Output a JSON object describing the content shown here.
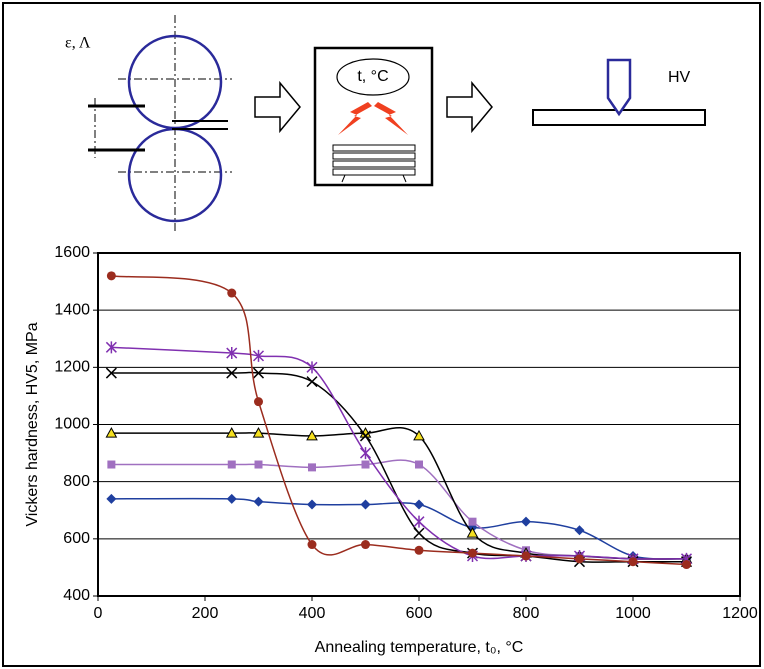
{
  "diagram": {
    "labels": [
      "ε, Λ",
      "t, °C",
      "HV"
    ]
  },
  "chart_data": {
    "type": "line",
    "y_label": "Vickers hardness, HV5, MPa",
    "x_label": "Annealing temperature, t₀, °C",
    "xlim": [
      0,
      1200
    ],
    "xticks": [
      0,
      200,
      400,
      600,
      800,
      1000,
      1200
    ],
    "ylim": [
      400,
      1600
    ],
    "yticks": [
      400,
      600,
      800,
      1000,
      1200,
      1400,
      1600
    ],
    "grid": true,
    "smooth": true,
    "series": [
      {
        "color": "#1f3f9f",
        "marker": "diamond",
        "x": [
          25,
          250,
          300,
          400,
          500,
          600,
          700,
          800,
          900,
          1000,
          1100
        ],
        "values": [
          740,
          740,
          730,
          720,
          720,
          720,
          640,
          660,
          630,
          540,
          530
        ]
      },
      {
        "color": "#a070c0",
        "marker": "square",
        "x": [
          25,
          250,
          300,
          400,
          500,
          600,
          700,
          800,
          900,
          1000,
          1100
        ],
        "values": [
          860,
          860,
          860,
          850,
          860,
          860,
          660,
          560,
          540,
          530,
          530
        ]
      },
      {
        "color": "#000000",
        "marker": "triangle",
        "x": [
          25,
          250,
          300,
          400,
          500,
          600,
          700,
          800,
          900,
          1000,
          1100
        ],
        "values": [
          970,
          970,
          970,
          960,
          970,
          960,
          620,
          550,
          540,
          530,
          530
        ]
      },
      {
        "color": "#000000",
        "marker": "cross",
        "x": [
          25,
          250,
          300,
          400,
          500,
          600,
          700,
          800,
          900,
          1000,
          1100
        ],
        "values": [
          1180,
          1180,
          1180,
          1150,
          960,
          620,
          550,
          540,
          520,
          520,
          520
        ]
      },
      {
        "color": "#8030b0",
        "marker": "star",
        "x": [
          25,
          250,
          300,
          400,
          500,
          600,
          700,
          800,
          900,
          1000,
          1100
        ],
        "values": [
          1270,
          1250,
          1240,
          1200,
          900,
          660,
          540,
          540,
          540,
          530,
          530
        ]
      },
      {
        "color": "#9b2c1e",
        "marker": "circle",
        "x": [
          25,
          250,
          300,
          400,
          500,
          600,
          700,
          800,
          900,
          1000,
          1100
        ],
        "values": [
          1520,
          1460,
          1080,
          580,
          580,
          560,
          550,
          540,
          530,
          520,
          510
        ]
      }
    ]
  }
}
